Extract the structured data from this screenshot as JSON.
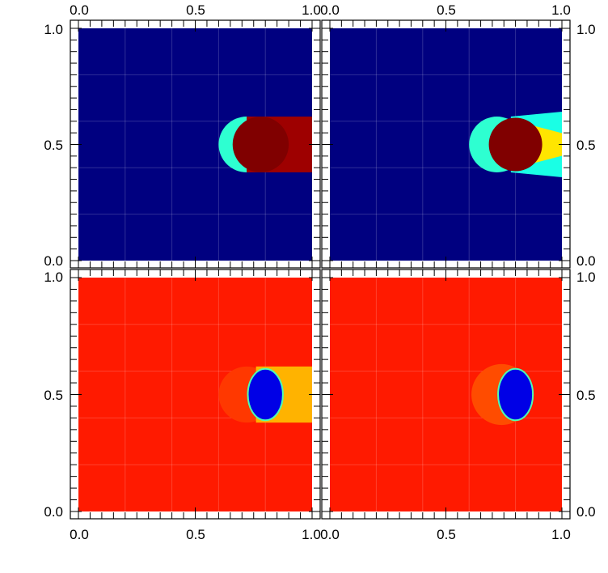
{
  "chart_data": [
    {
      "type": "heatmap",
      "panel": "top-left",
      "title": "",
      "xlabel": "",
      "ylabel": "",
      "xlim": [
        0.0,
        1.0
      ],
      "ylim": [
        0.0,
        1.0
      ],
      "grid": true,
      "colormap": "jet",
      "background_level": 0.0,
      "features": [
        {
          "shape": "crescent",
          "center": [
            0.72,
            0.5
          ],
          "radius": 0.12,
          "level": 0.42
        },
        {
          "shape": "capsule",
          "x_start": 0.72,
          "x_end": 1.0,
          "y_range": [
            0.38,
            0.62
          ],
          "level": 0.97
        },
        {
          "shape": "rounded-tip",
          "center": [
            0.78,
            0.5
          ],
          "radius": 0.12,
          "level": 1.0
        }
      ]
    },
    {
      "type": "heatmap",
      "panel": "top-right",
      "title": "",
      "xlabel": "",
      "ylabel": "",
      "xlim": [
        0.0,
        1.0
      ],
      "ylim": [
        0.0,
        1.0
      ],
      "grid": true,
      "colormap": "jet",
      "background_level": 0.0,
      "features": [
        {
          "shape": "crescent",
          "center": [
            0.72,
            0.5
          ],
          "radius": 0.12,
          "level": 0.42
        },
        {
          "shape": "wake",
          "x_start": 0.78,
          "x_end": 1.0,
          "y_range": [
            0.38,
            0.62
          ],
          "level": 0.65
        },
        {
          "shape": "disk",
          "center": [
            0.8,
            0.5
          ],
          "radius": 0.115,
          "level": 1.0
        }
      ]
    },
    {
      "type": "heatmap",
      "panel": "bottom-left",
      "title": "",
      "xlabel": "",
      "ylabel": "",
      "xlim": [
        0.0,
        1.0
      ],
      "ylim": [
        0.0,
        1.0
      ],
      "grid": true,
      "colormap": "jet",
      "background_level": 0.85,
      "features": [
        {
          "shape": "crescent",
          "center": [
            0.72,
            0.5
          ],
          "radius": 0.12,
          "level": 0.82
        },
        {
          "shape": "capsule",
          "x_start": 0.76,
          "x_end": 1.0,
          "y_range": [
            0.38,
            0.62
          ],
          "level": 0.7
        },
        {
          "shape": "ellipse",
          "center": [
            0.8,
            0.5
          ],
          "radius": [
            0.075,
            0.11
          ],
          "level": 0.1
        }
      ]
    },
    {
      "type": "heatmap",
      "panel": "bottom-right",
      "title": "",
      "xlabel": "",
      "ylabel": "",
      "xlim": [
        0.0,
        1.0
      ],
      "ylim": [
        0.0,
        1.0
      ],
      "grid": true,
      "colormap": "jet",
      "background_level": 0.85,
      "features": [
        {
          "shape": "crescent",
          "center": [
            0.74,
            0.5
          ],
          "radius": 0.13,
          "level": 0.8
        },
        {
          "shape": "ellipse",
          "center": [
            0.8,
            0.5
          ],
          "radius": [
            0.075,
            0.11
          ],
          "level": 0.1
        }
      ]
    }
  ],
  "axes": {
    "top_ticks": {
      "left": [
        "0.0",
        "0.5",
        "1.0"
      ],
      "right": [
        "0.0",
        "0.5",
        "1.0"
      ]
    },
    "bottom_ticks": {
      "left": [
        "0.0",
        "0.5",
        "1.0"
      ],
      "right": [
        "0.0",
        "0.5",
        "1.0"
      ]
    },
    "left_ticks": {
      "top": [
        "0.0",
        "0.5",
        "1.0"
      ],
      "bottom": [
        "0.0",
        "0.5",
        "1.0"
      ]
    },
    "right_ticks": {
      "top": [
        "0.0",
        "0.5",
        "1.0"
      ],
      "bottom": [
        "0.0",
        "0.5",
        "1.0"
      ]
    },
    "tick_values": [
      0.0,
      0.5,
      1.0
    ],
    "minor_step": 0.05
  }
}
